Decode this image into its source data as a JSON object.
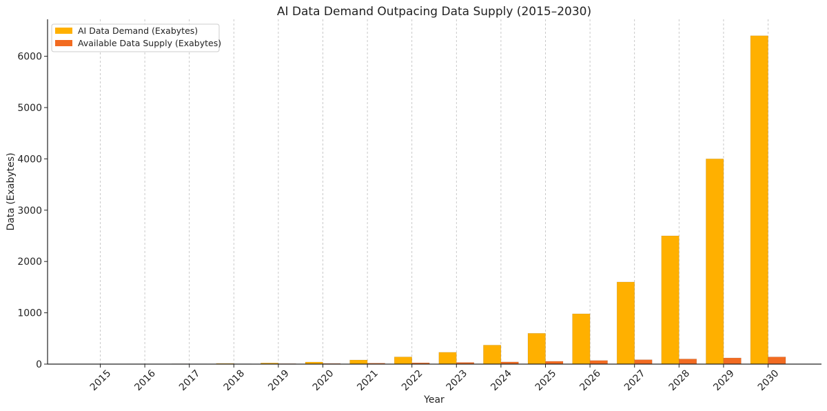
{
  "chart_data": {
    "type": "bar",
    "title": "AI Data Demand Outpacing Data Supply (2015–2030)",
    "xlabel": "Year",
    "ylabel": "Data (Exabytes)",
    "categories": [
      "2015",
      "2016",
      "2017",
      "2018",
      "2019",
      "2020",
      "2021",
      "2022",
      "2023",
      "2024",
      "2025",
      "2026",
      "2027",
      "2028",
      "2029",
      "2030"
    ],
    "ylim": [
      0,
      6720
    ],
    "yticks": [
      0,
      1000,
      2000,
      3000,
      4000,
      5000,
      6000
    ],
    "grid": "vertical dashed",
    "legend_position": "top-left",
    "series": [
      {
        "name": "AI Data Demand (Exabytes)",
        "color": "#FFB000",
        "values": [
          2,
          4,
          7,
          13,
          22,
          40,
          80,
          140,
          230,
          370,
          600,
          980,
          1600,
          2500,
          4000,
          6400
        ]
      },
      {
        "name": "Available Data Supply (Exabytes)",
        "color": "#F26B21",
        "values": [
          2,
          3,
          4,
          6,
          9,
          12,
          18,
          25,
          32,
          42,
          55,
          70,
          85,
          100,
          120,
          140
        ]
      }
    ]
  }
}
